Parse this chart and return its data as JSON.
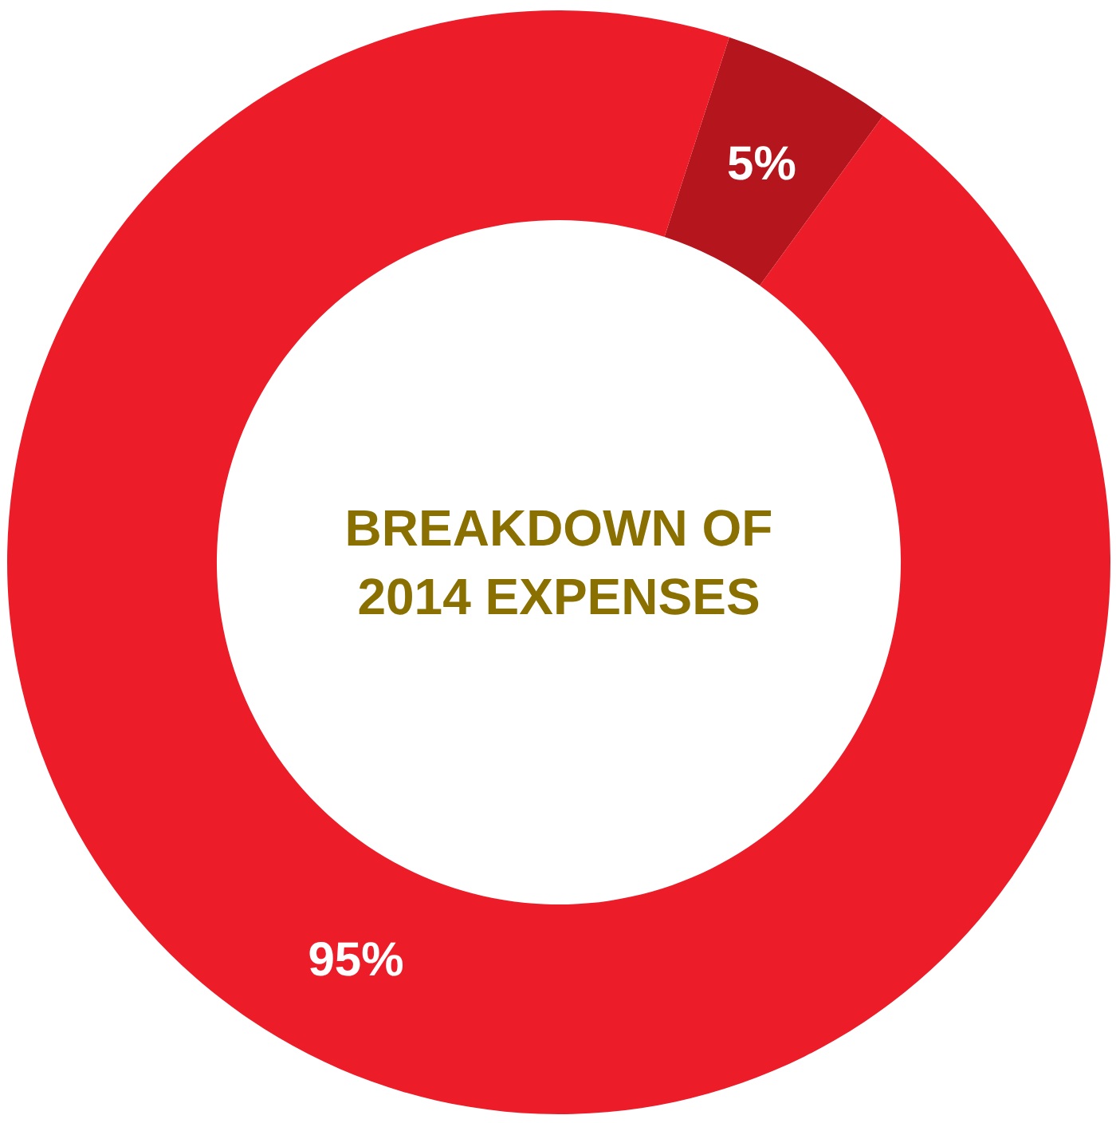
{
  "chart_data": {
    "type": "donut",
    "title": "BREAKDOWN OF\n2014 EXPENSES",
    "categories": [
      null,
      null
    ],
    "values": [
      5,
      95
    ],
    "colors": [
      "#b5161d",
      "#ed1c29"
    ],
    "value_labels": [
      "5%",
      "95%"
    ]
  }
}
